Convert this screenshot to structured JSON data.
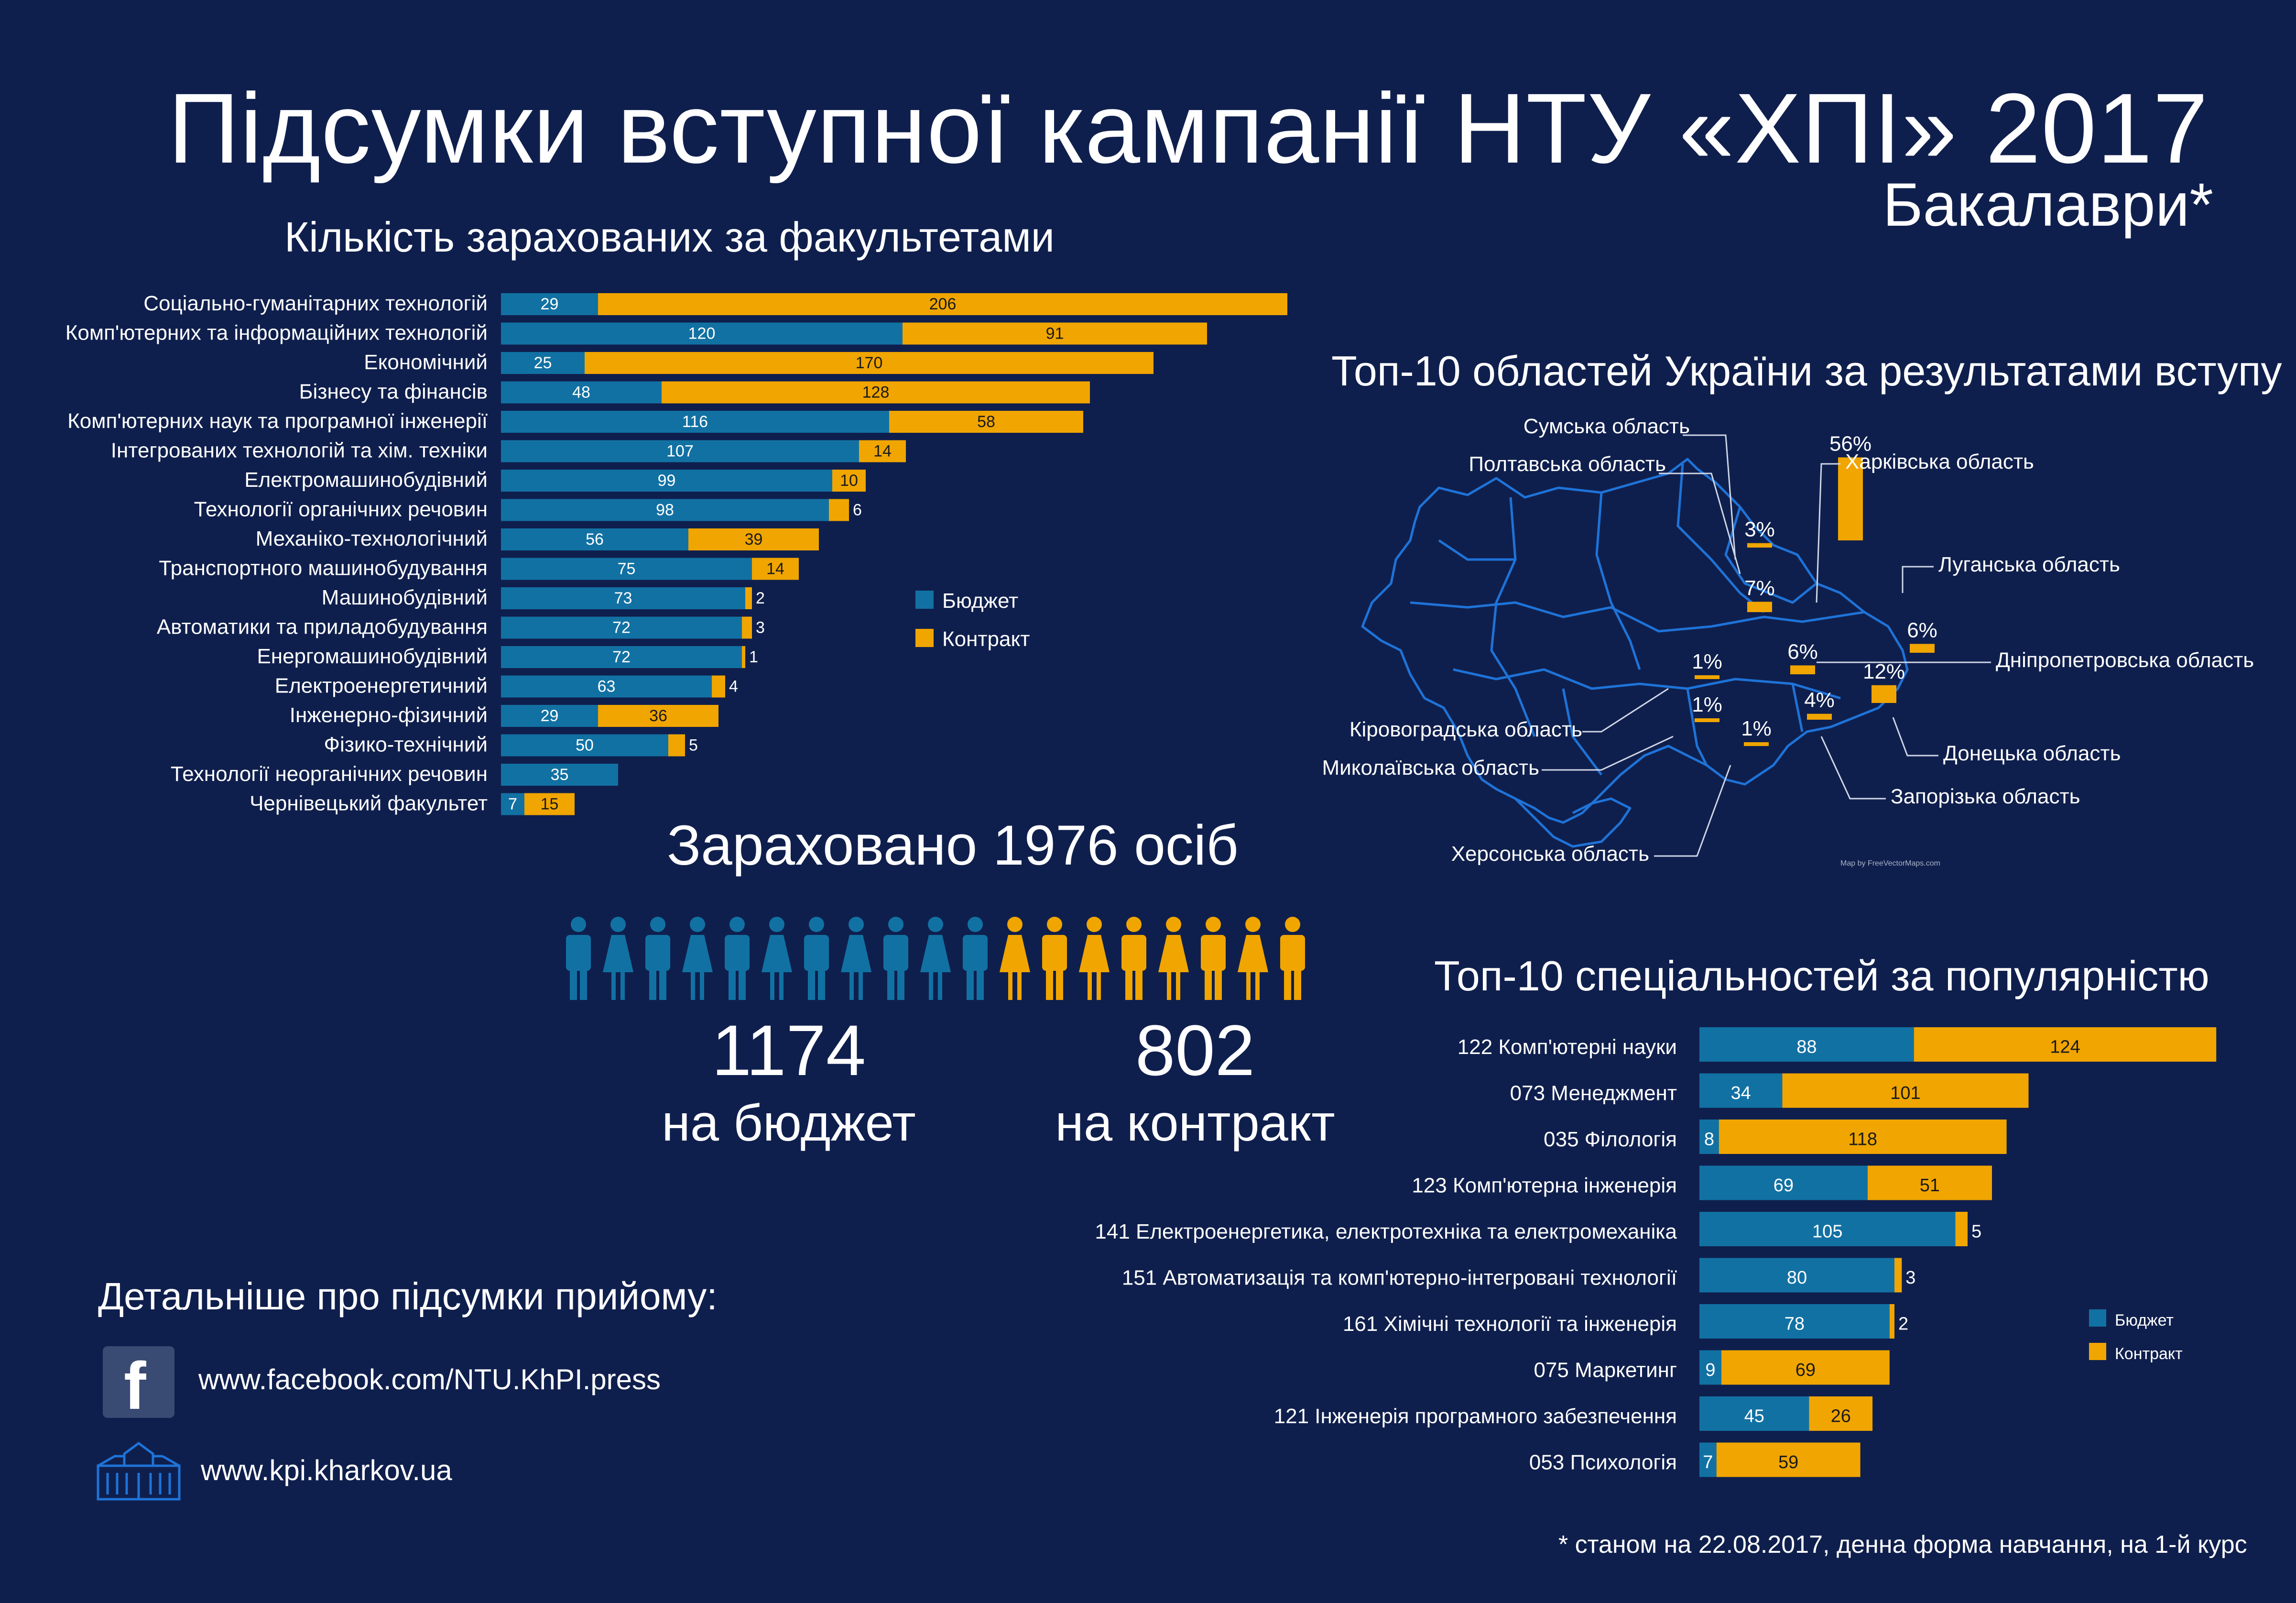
{
  "header": {
    "title": "Підсумки вступної кампанії НТУ «ХПІ» 2017",
    "subtitle": "Бакалаври*"
  },
  "colors": {
    "background": "#0f1f4d",
    "budget": "#1271a3",
    "contract": "#f0a500",
    "map_stroke": "#1e73d8"
  },
  "chart_data": [
    {
      "type": "bar",
      "orientation": "horizontal",
      "stacked": true,
      "title": "Кількість зарахованих за факультетами",
      "categories": [
        "Соціально-гуманітарних технологій",
        "Комп'ютерних та інформаційних технологій",
        "Економічний",
        "Бізнесу та фінансів",
        "Комп'ютерних наук та програмної інженерії",
        "Інтегрованих технологій та хім. техніки",
        "Електромашинобудівний",
        "Технології органічних речовин",
        "Механіко-технологічний",
        "Транспортного машинобудування",
        "Машинобудівний",
        "Автоматики та приладобудування",
        "Енергомашинобудівний",
        "Електроенергетичний",
        "Інженерно-фізичний",
        "Фізико-технічний",
        "Технології неорганічних речовин",
        "Чернівецький факультет"
      ],
      "series": [
        {
          "name": "Бюджет",
          "values": [
            29,
            120,
            25,
            48,
            116,
            107,
            99,
            98,
            56,
            75,
            73,
            72,
            72,
            63,
            29,
            50,
            35,
            7
          ]
        },
        {
          "name": "Контракт",
          "values": [
            206,
            91,
            170,
            128,
            58,
            14,
            10,
            6,
            39,
            14,
            2,
            3,
            1,
            4,
            36,
            5,
            0,
            15
          ]
        }
      ],
      "legend": "right"
    },
    {
      "type": "bar",
      "orientation": "horizontal",
      "stacked": true,
      "title": "Топ-10 спеціальностей за популярністю",
      "categories": [
        "122 Комп'ютерні науки",
        "073 Менеджмент",
        "035 Філологія",
        "123 Комп'ютерна інженерія",
        "141 Електроенергетика, електротехніка та електромеханіка",
        "151 Автоматизація та комп'ютерно-інтегровані технології",
        "161 Хімічні технології та інженерія",
        "075 Маркетинг",
        "121 Інженерія програмного забезпечення",
        "053 Психологія"
      ],
      "series": [
        {
          "name": "Бюджет",
          "values": [
            88,
            34,
            8,
            69,
            105,
            80,
            78,
            9,
            45,
            7
          ]
        },
        {
          "name": "Контракт",
          "values": [
            124,
            101,
            118,
            51,
            5,
            3,
            2,
            69,
            26,
            59
          ]
        }
      ],
      "legend": "right"
    }
  ],
  "map": {
    "title": "Топ-10 областей України за результатами вступу",
    "credit": "Map by FreeVectorMaps.com",
    "regions": [
      {
        "name": "Сумська область",
        "value": "3%"
      },
      {
        "name": "Полтавська область",
        "value": "7%"
      },
      {
        "name": "Харківська область",
        "value": "56%"
      },
      {
        "name": "Луганська область",
        "value": "6%"
      },
      {
        "name": "Дніпропетровська область",
        "value": "6%"
      },
      {
        "name": "Донецька область",
        "value": "12%"
      },
      {
        "name": "Запорізька область",
        "value": "4%"
      },
      {
        "name": "Кіровоградська область",
        "value": "1%"
      },
      {
        "name": "Миколаївська область",
        "value": "1%"
      },
      {
        "name": "Херсонська область",
        "value": "1%"
      }
    ]
  },
  "totals": {
    "headline": "Зараховано 1976 осіб",
    "budget_count": "1174",
    "budget_label": "на бюджет",
    "contract_count": "802",
    "contract_label": "на контракт"
  },
  "links": {
    "heading": "Детальніше про підсумки прийому:",
    "facebook": "www.facebook.com/NTU.KhPI.press",
    "site": "www.kpi.kharkov.ua"
  },
  "footnote": "* станом на 22.08.2017, денна форма навчання, на 1-й курс"
}
